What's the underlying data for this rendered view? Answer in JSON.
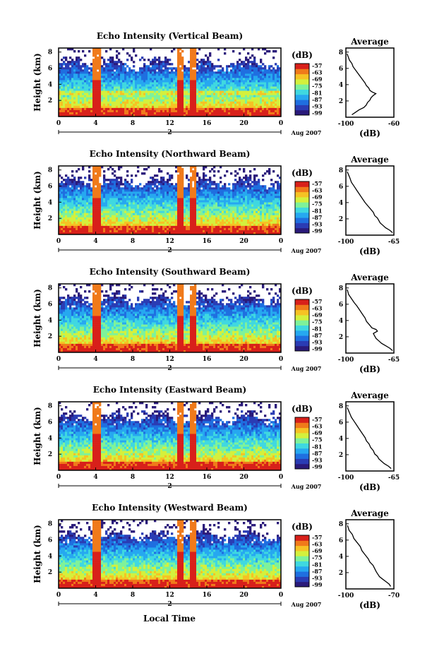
{
  "panels": [
    {
      "title": "Echo Intensity (Vertical Beam)",
      "avg_xticks": [
        "-100",
        "-60"
      ],
      "avg_xlim": [
        -100,
        -60
      ],
      "avg_profile": [
        [
          -95,
          0.3
        ],
        [
          -92,
          0.6
        ],
        [
          -89,
          0.9
        ],
        [
          -85,
          1.2
        ],
        [
          -83,
          1.5
        ],
        [
          -82,
          1.8
        ],
        [
          -80,
          2.1
        ],
        [
          -79,
          2.4
        ],
        [
          -77,
          2.7
        ],
        [
          -75,
          2.9
        ],
        [
          -78,
          3.1
        ],
        [
          -80,
          3.3
        ],
        [
          -81,
          3.6
        ],
        [
          -83,
          3.9
        ],
        [
          -84,
          4.2
        ],
        [
          -86,
          4.6
        ],
        [
          -88,
          5.0
        ],
        [
          -90,
          5.4
        ],
        [
          -92,
          5.8
        ],
        [
          -94,
          6.2
        ],
        [
          -95,
          6.6
        ],
        [
          -97,
          7.0
        ],
        [
          -98,
          7.4
        ],
        [
          -99,
          7.8
        ]
      ]
    },
    {
      "title": "Echo Intensity (Northward Beam)",
      "avg_xticks": [
        "-100",
        "-65"
      ],
      "avg_xlim": [
        -100,
        -65
      ],
      "avg_profile": [
        [
          -66,
          0.3
        ],
        [
          -68,
          0.6
        ],
        [
          -71,
          0.9
        ],
        [
          -73,
          1.2
        ],
        [
          -75,
          1.5
        ],
        [
          -76,
          1.8
        ],
        [
          -77,
          2.1
        ],
        [
          -79,
          2.4
        ],
        [
          -80,
          2.8
        ],
        [
          -82,
          3.2
        ],
        [
          -84,
          3.6
        ],
        [
          -86,
          4.0
        ],
        [
          -88,
          4.5
        ],
        [
          -90,
          5.0
        ],
        [
          -92,
          5.5
        ],
        [
          -94,
          6.0
        ],
        [
          -96,
          6.5
        ],
        [
          -97,
          7.0
        ],
        [
          -98,
          7.4
        ],
        [
          -99,
          7.8
        ]
      ]
    },
    {
      "title": "Echo Intensity (Southward Beam)",
      "avg_xticks": [
        "-100",
        "-65"
      ],
      "avg_xlim": [
        -100,
        -65
      ],
      "avg_profile": [
        [
          -66,
          0.3
        ],
        [
          -68,
          0.6
        ],
        [
          -71,
          0.9
        ],
        [
          -74,
          1.2
        ],
        [
          -76,
          1.5
        ],
        [
          -78,
          1.8
        ],
        [
          -79,
          2.1
        ],
        [
          -80,
          2.4
        ],
        [
          -77,
          2.7
        ],
        [
          -78,
          2.9
        ],
        [
          -81,
          3.1
        ],
        [
          -83,
          3.5
        ],
        [
          -85,
          3.9
        ],
        [
          -86,
          4.3
        ],
        [
          -88,
          4.8
        ],
        [
          -90,
          5.3
        ],
        [
          -92,
          5.8
        ],
        [
          -94,
          6.2
        ],
        [
          -96,
          6.7
        ],
        [
          -98,
          7.2
        ],
        [
          -99,
          7.8
        ]
      ]
    },
    {
      "title": "Echo Intensity (Eastward Beam)",
      "avg_xticks": [
        "-100",
        "-65"
      ],
      "avg_xlim": [
        -100,
        -65
      ],
      "avg_profile": [
        [
          -67,
          0.3
        ],
        [
          -69,
          0.6
        ],
        [
          -72,
          0.9
        ],
        [
          -74,
          1.2
        ],
        [
          -76,
          1.5
        ],
        [
          -77,
          1.8
        ],
        [
          -79,
          2.1
        ],
        [
          -80,
          2.5
        ],
        [
          -82,
          2.9
        ],
        [
          -83,
          3.3
        ],
        [
          -85,
          3.7
        ],
        [
          -86,
          4.1
        ],
        [
          -88,
          4.6
        ],
        [
          -90,
          5.1
        ],
        [
          -92,
          5.6
        ],
        [
          -94,
          6.1
        ],
        [
          -96,
          6.6
        ],
        [
          -97,
          7.0
        ],
        [
          -98,
          7.4
        ],
        [
          -99,
          7.8
        ]
      ]
    },
    {
      "title": "Echo Intensity (Westward Beam)",
      "avg_xticks": [
        "-100",
        "-70"
      ],
      "avg_xlim": [
        -100,
        -70
      ],
      "avg_profile": [
        [
          -72,
          0.3
        ],
        [
          -73,
          0.6
        ],
        [
          -75,
          0.9
        ],
        [
          -77,
          1.2
        ],
        [
          -79,
          1.5
        ],
        [
          -80,
          1.8
        ],
        [
          -81,
          2.1
        ],
        [
          -82,
          2.5
        ],
        [
          -83,
          2.9
        ],
        [
          -85,
          3.3
        ],
        [
          -86,
          3.7
        ],
        [
          -88,
          4.2
        ],
        [
          -90,
          4.7
        ],
        [
          -91,
          5.2
        ],
        [
          -93,
          5.7
        ],
        [
          -95,
          6.2
        ],
        [
          -96,
          6.7
        ],
        [
          -98,
          7.2
        ],
        [
          -99,
          7.8
        ]
      ]
    }
  ],
  "common": {
    "ylabel": "Height (km)",
    "yticks": [
      "2",
      "4",
      "6",
      "8"
    ],
    "xticks": [
      "0",
      "4",
      "8",
      "12",
      "16",
      "20",
      "0"
    ],
    "date_day": "2",
    "date_label": "Aug 2007",
    "colorbar_unit": "(dB)",
    "colorbar_ticks": [
      "-57",
      "-63",
      "-69",
      "-75",
      "-81",
      "-87",
      "-93",
      "-99"
    ],
    "avg_title": "Average",
    "avg_xlabel": "(dB)",
    "xlabel_bottom": "Local Time"
  },
  "colors": {
    "colormap": [
      "#2a1a7a",
      "#2a3cb4",
      "#1f6fe0",
      "#26a8f0",
      "#3fd8e0",
      "#7ef29a",
      "#d4f03c",
      "#f6c224",
      "#f07a1a",
      "#d8201a"
    ],
    "no_data": "#ffffff"
  },
  "chart_data": [
    {
      "type": "heatmap",
      "title": "Echo Intensity (Vertical Beam)",
      "xlabel": "",
      "ylabel": "Height (km)",
      "x_unit": "hours local time, 2 Aug 2007",
      "xlim": [
        0,
        24
      ],
      "ylim": [
        0,
        8.5
      ],
      "zlim": [
        -99,
        -57
      ],
      "features": {
        "strong_echo_times_h": [
          4.0,
          13.0,
          14.5
        ],
        "cloud_top_km": 6.5,
        "noisy_region_top_km": 8.0
      }
    },
    {
      "type": "line",
      "title": "Average",
      "xlabel": "(dB)",
      "ylabel": "Height (km)",
      "xlim": [
        -100,
        -60
      ],
      "ylim": [
        0,
        8.5
      ],
      "series": [
        {
          "panel": 0
        }
      ]
    },
    {
      "type": "heatmap",
      "title": "Echo Intensity (Northward Beam)",
      "xlabel": "",
      "ylabel": "Height (km)",
      "xlim": [
        0,
        24
      ],
      "ylim": [
        0,
        8.5
      ],
      "zlim": [
        -99,
        -57
      ]
    },
    {
      "type": "line",
      "title": "Average",
      "xlabel": "(dB)",
      "ylabel": "Height (km)",
      "xlim": [
        -100,
        -65
      ],
      "ylim": [
        0,
        8.5
      ],
      "series": [
        {
          "panel": 1
        }
      ]
    },
    {
      "type": "heatmap",
      "title": "Echo Intensity (Southward Beam)",
      "xlabel": "",
      "ylabel": "Height (km)",
      "xlim": [
        0,
        24
      ],
      "ylim": [
        0,
        8.5
      ],
      "zlim": [
        -99,
        -57
      ]
    },
    {
      "type": "line",
      "title": "Average",
      "xlabel": "(dB)",
      "ylabel": "Height (km)",
      "xlim": [
        -100,
        -65
      ],
      "ylim": [
        0,
        8.5
      ],
      "series": [
        {
          "panel": 2
        }
      ]
    },
    {
      "type": "heatmap",
      "title": "Echo Intensity (Eastward Beam)",
      "xlabel": "",
      "ylabel": "Height (km)",
      "xlim": [
        0,
        24
      ],
      "ylim": [
        0,
        8.5
      ],
      "zlim": [
        -99,
        -57
      ]
    },
    {
      "type": "line",
      "title": "Average",
      "xlabel": "(dB)",
      "ylabel": "Height (km)",
      "xlim": [
        -100,
        -65
      ],
      "ylim": [
        0,
        8.5
      ],
      "series": [
        {
          "panel": 3
        }
      ]
    },
    {
      "type": "heatmap",
      "title": "Echo Intensity (Westward Beam)",
      "xlabel": "Local Time",
      "ylabel": "Height (km)",
      "xlim": [
        0,
        24
      ],
      "ylim": [
        0,
        8.5
      ],
      "zlim": [
        -99,
        -57
      ]
    },
    {
      "type": "line",
      "title": "Average",
      "xlabel": "(dB)",
      "ylabel": "Height (km)",
      "xlim": [
        -100,
        -70
      ],
      "ylim": [
        0,
        8.5
      ],
      "series": [
        {
          "panel": 4
        }
      ]
    }
  ]
}
